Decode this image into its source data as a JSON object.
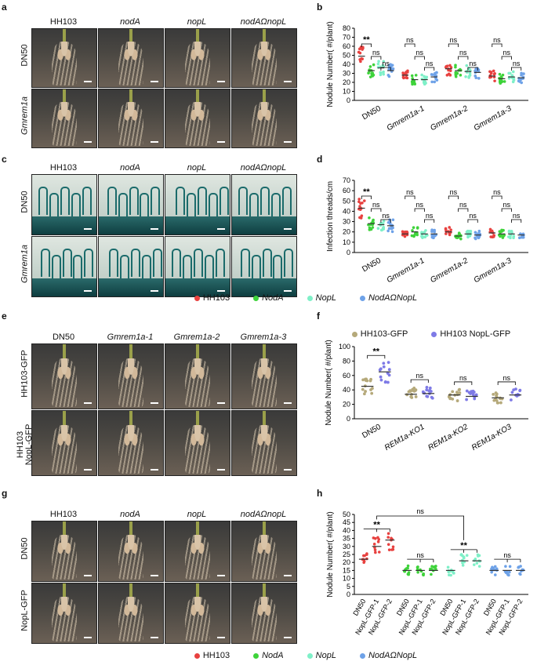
{
  "panel_letters": [
    "a",
    "b",
    "c",
    "d",
    "e",
    "f",
    "g",
    "h"
  ],
  "panel_a": {
    "columns": [
      "HH103",
      "nodA",
      "nopL",
      "nodAΩnopL"
    ],
    "columns_italic": [
      false,
      true,
      true,
      true
    ],
    "rows": [
      "DN50",
      "Gmrem1a"
    ],
    "rows_italic": [
      false,
      true
    ]
  },
  "panel_c": {
    "columns": [
      "HH103",
      "nodA",
      "nopL",
      "nodAΩnopL"
    ],
    "columns_italic": [
      false,
      true,
      true,
      true
    ],
    "rows": [
      "DN50",
      "Gmrem1a"
    ],
    "rows_italic": [
      false,
      true
    ]
  },
  "panel_e": {
    "columns": [
      "DN50",
      "Gmrem1a-1",
      "Gmrem1a-2",
      "Gmrem1a-3"
    ],
    "columns_italic": [
      false,
      true,
      true,
      true
    ],
    "rows": [
      "HH103-GFP",
      "HH103\nNopL-GFP"
    ]
  },
  "panel_g": {
    "columns": [
      "HH103",
      "nodA",
      "nopL",
      "nodAΩnopL"
    ],
    "columns_italic": [
      false,
      true,
      true,
      true
    ],
    "rows": [
      "DN50",
      "NopL-GFP"
    ]
  },
  "legend_cd": [
    {
      "label": "HH103",
      "color": "#e8413f",
      "italic": false
    },
    {
      "label": "NodA",
      "color": "#3ed33a",
      "italic": true
    },
    {
      "label": "NopL",
      "color": "#7ff0c8",
      "italic": true
    },
    {
      "label": "NodAΩNopL",
      "color": "#6ea2e8",
      "italic": true
    }
  ],
  "legend_f": [
    {
      "label": "HH103-GFP",
      "color": "#b5a97a"
    },
    {
      "label": "HH103 NopL-GFP",
      "color": "#7e7ae6"
    }
  ],
  "legend_h": [
    {
      "label": "HH103",
      "color": "#e8413f",
      "italic": false
    },
    {
      "label": "NodA",
      "color": "#3ed33a",
      "italic": true
    },
    {
      "label": "NopL",
      "color": "#7ff0c8",
      "italic": true
    },
    {
      "label": "NodAΩNopL",
      "color": "#6ea2e8",
      "italic": true
    }
  ],
  "chart_data": [
    {
      "panel": "b",
      "type": "scatter",
      "ylabel": "Nodule Number( #/plant)",
      "yticks": [
        0,
        10,
        20,
        30,
        40,
        50,
        60,
        70,
        80
      ],
      "ylim": [
        0,
        80
      ],
      "groups": [
        "DN50",
        "Gmrem1a-1",
        "Gmrem1a-2",
        "Gmrem1a-3"
      ],
      "groups_italic": [
        false,
        true,
        true,
        true
      ],
      "series": [
        "HH103",
        "NodA",
        "NopL",
        "NodAΩNopL"
      ],
      "means": [
        [
          49,
          33,
          36,
          33
        ],
        [
          28,
          23,
          23,
          26
        ],
        [
          35,
          33,
          32,
          31
        ],
        [
          27,
          24,
          26,
          25
        ]
      ],
      "significance": [
        [
          "**",
          "ns",
          "ns"
        ],
        [
          "ns",
          "ns",
          "ns"
        ],
        [
          "ns",
          "ns",
          "ns"
        ],
        [
          "ns",
          "ns",
          "ns"
        ]
      ]
    },
    {
      "panel": "d",
      "type": "scatter",
      "ylabel": "Infection threads/cm",
      "yticks": [
        0,
        10,
        20,
        30,
        40,
        50,
        60,
        70
      ],
      "ylim": [
        0,
        70
      ],
      "groups": [
        "DN50",
        "Gmrem1a-1",
        "Gmrem1a-2",
        "Gmrem1a-3"
      ],
      "groups_italic": [
        false,
        true,
        true,
        true
      ],
      "series": [
        "HH103",
        "NodA",
        "NopL",
        "NodAΩNopL"
      ],
      "means": [
        [
          43,
          28,
          27,
          26
        ],
        [
          18,
          20,
          18,
          18
        ],
        [
          20,
          16,
          18,
          17
        ],
        [
          19,
          18,
          18,
          17
        ]
      ],
      "significance": [
        [
          "**",
          "ns",
          "ns"
        ],
        [
          "ns",
          "ns",
          "ns"
        ],
        [
          "ns",
          "ns",
          "ns"
        ],
        [
          "ns",
          "ns",
          "ns"
        ]
      ]
    },
    {
      "panel": "f",
      "type": "scatter",
      "ylabel": "Nodule Number( #/plant)",
      "yticks": [
        0,
        20,
        40,
        60,
        80,
        100
      ],
      "ylim": [
        0,
        100
      ],
      "groups": [
        "DN50",
        "REM1a-KO1",
        "REM1a-KO2",
        "REM1a-KO3"
      ],
      "groups_italic": [
        false,
        true,
        true,
        true
      ],
      "series": [
        "HH103-GFP",
        "HH103 NopL-GFP"
      ],
      "means": [
        [
          45,
          65
        ],
        [
          34,
          35
        ],
        [
          33,
          31
        ],
        [
          29,
          33
        ]
      ],
      "significance": [
        "**",
        "ns",
        "ns",
        "ns"
      ]
    },
    {
      "panel": "h",
      "type": "scatter",
      "ylabel": "Nodule Number( #/plant)",
      "yticks": [
        0,
        5,
        10,
        15,
        20,
        25,
        30,
        35,
        40,
        45,
        50
      ],
      "ylim": [
        0,
        50
      ],
      "groups": [
        "HH103",
        "NodA",
        "NopL",
        "NodAΩNopL"
      ],
      "xticklabels": [
        "DN50",
        "NopL-GFP-1",
        "NopL-GFP-2"
      ],
      "means": [
        [
          22,
          30,
          34
        ],
        [
          15,
          15,
          15
        ],
        [
          15,
          21,
          21
        ],
        [
          15,
          15,
          15
        ]
      ],
      "significance": {
        "HH103": "**",
        "NodA": "ns",
        "NopL": "**",
        "NodAΩNopL": "ns",
        "top": "ns"
      }
    }
  ]
}
